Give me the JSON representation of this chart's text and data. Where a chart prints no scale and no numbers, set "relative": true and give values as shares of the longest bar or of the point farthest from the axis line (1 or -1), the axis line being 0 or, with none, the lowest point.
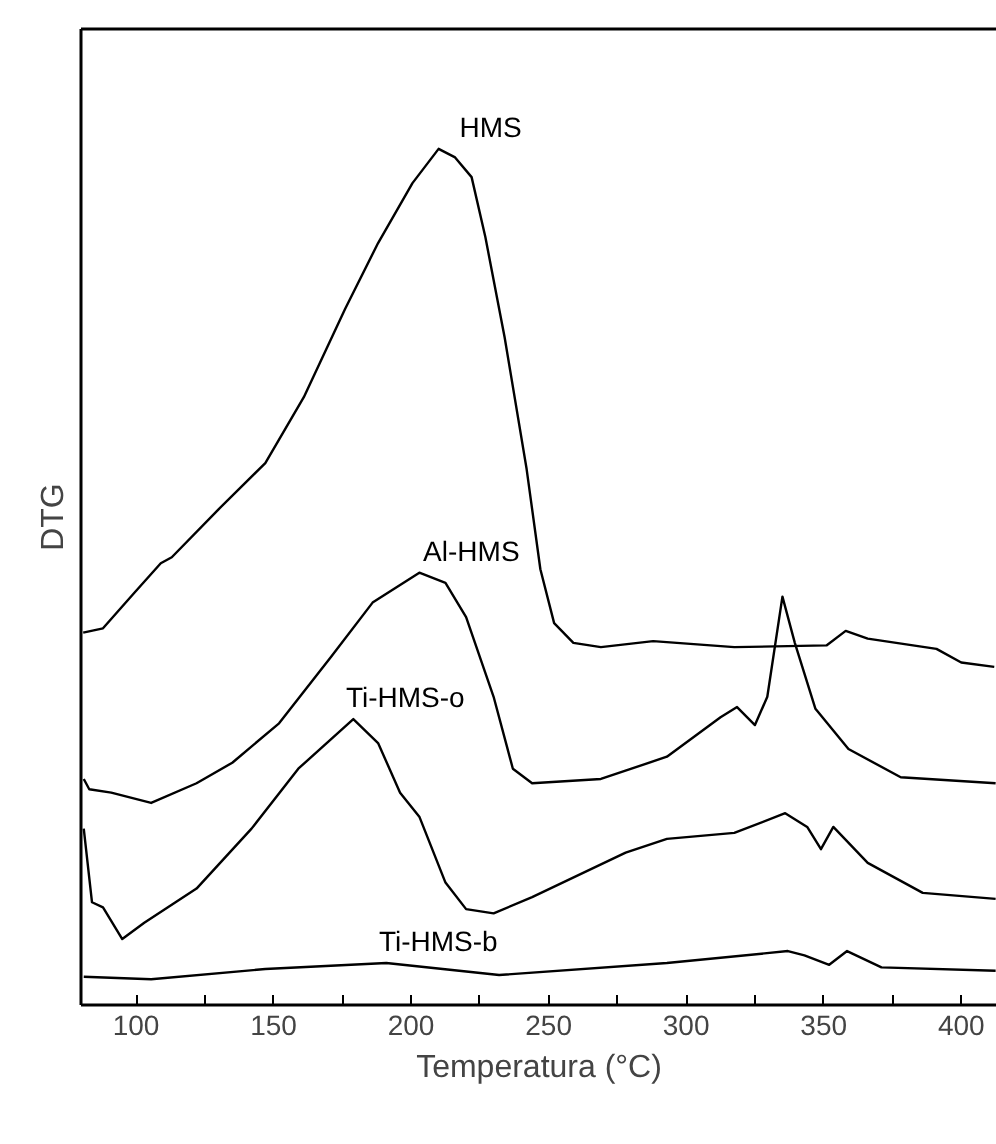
{
  "chart_data": {
    "type": "line",
    "relative": true,
    "xlabel": "Temperatura (°C)",
    "ylabel": "DTG",
    "xlim": [
      80,
      413
    ],
    "xticks": [
      100,
      {
        "value": 125,
        "label": null
      },
      150,
      {
        "value": 175,
        "label": null
      },
      200,
      {
        "value": 225,
        "label": null
      },
      250,
      {
        "value": 275,
        "label": null
      },
      300,
      {
        "value": 325,
        "label": null
      },
      350,
      {
        "value": 375,
        "label": null
      },
      400
    ],
    "grid": false,
    "marker": "none",
    "line_style": "solid",
    "series": [
      {
        "name": "HMS",
        "color": "#000000",
        "x": [
          80.8,
          88,
          99,
          109,
          113,
          130,
          147,
          161,
          176,
          188,
          200.5,
          210,
          216,
          222,
          227,
          234,
          242,
          247,
          252,
          259,
          269,
          288,
          317.5,
          351,
          358,
          366,
          391,
          400,
          412
        ],
        "values": [
          0.435,
          0.44,
          0.48,
          0.516,
          0.523,
          0.579,
          0.633,
          0.71,
          0.813,
          0.89,
          0.96,
          1,
          0.99,
          0.967,
          0.897,
          0.78,
          0.626,
          0.509,
          0.446,
          0.423,
          0.418,
          0.425,
          0.418,
          0.42,
          0.437,
          0.428,
          0.416,
          0.4,
          0.395
        ]
      },
      {
        "name": "Al-HMS",
        "color": "#000000",
        "x": [
          81,
          83,
          91,
          105.5,
          122,
          135,
          152,
          171,
          186,
          203,
          212.5,
          220,
          230,
          237,
          244,
          269,
          293,
          312.5,
          318.5,
          325,
          329.5,
          335,
          339.5,
          347,
          359,
          378,
          412.5
        ],
        "values": [
          0.264,
          0.252,
          0.248,
          0.236,
          0.259,
          0.283,
          0.329,
          0.407,
          0.47,
          0.505,
          0.493,
          0.453,
          0.36,
          0.276,
          0.259,
          0.264,
          0.29,
          0.336,
          0.348,
          0.327,
          0.36,
          0.477,
          0.423,
          0.346,
          0.299,
          0.266,
          0.259
        ]
      },
      {
        "name": "Ti-HMS-o",
        "color": "#000000",
        "x": [
          81,
          84,
          88,
          95,
          103,
          122,
          142,
          159,
          179,
          188,
          196,
          203,
          212.5,
          220,
          230,
          244,
          278,
          293,
          317.5,
          336,
          344,
          349,
          353.5,
          366,
          386,
          412.5
        ],
        "values": [
          0.206,
          0.12,
          0.114,
          0.077,
          0.096,
          0.136,
          0.206,
          0.276,
          0.334,
          0.306,
          0.248,
          0.22,
          0.143,
          0.112,
          0.107,
          0.126,
          0.178,
          0.194,
          0.201,
          0.224,
          0.208,
          0.182,
          0.208,
          0.166,
          0.131,
          0.124
        ]
      },
      {
        "name": "Ti-HMS-b",
        "color": "#000000",
        "x": [
          81,
          105.5,
          147,
          191,
          232,
          293,
          337,
          343,
          352,
          358.5,
          371,
          412.5
        ],
        "values": [
          0.033,
          0.03,
          0.042,
          0.049,
          0.035,
          0.049,
          0.063,
          0.058,
          0.047,
          0.063,
          0.044,
          0.04
        ]
      }
    ]
  }
}
